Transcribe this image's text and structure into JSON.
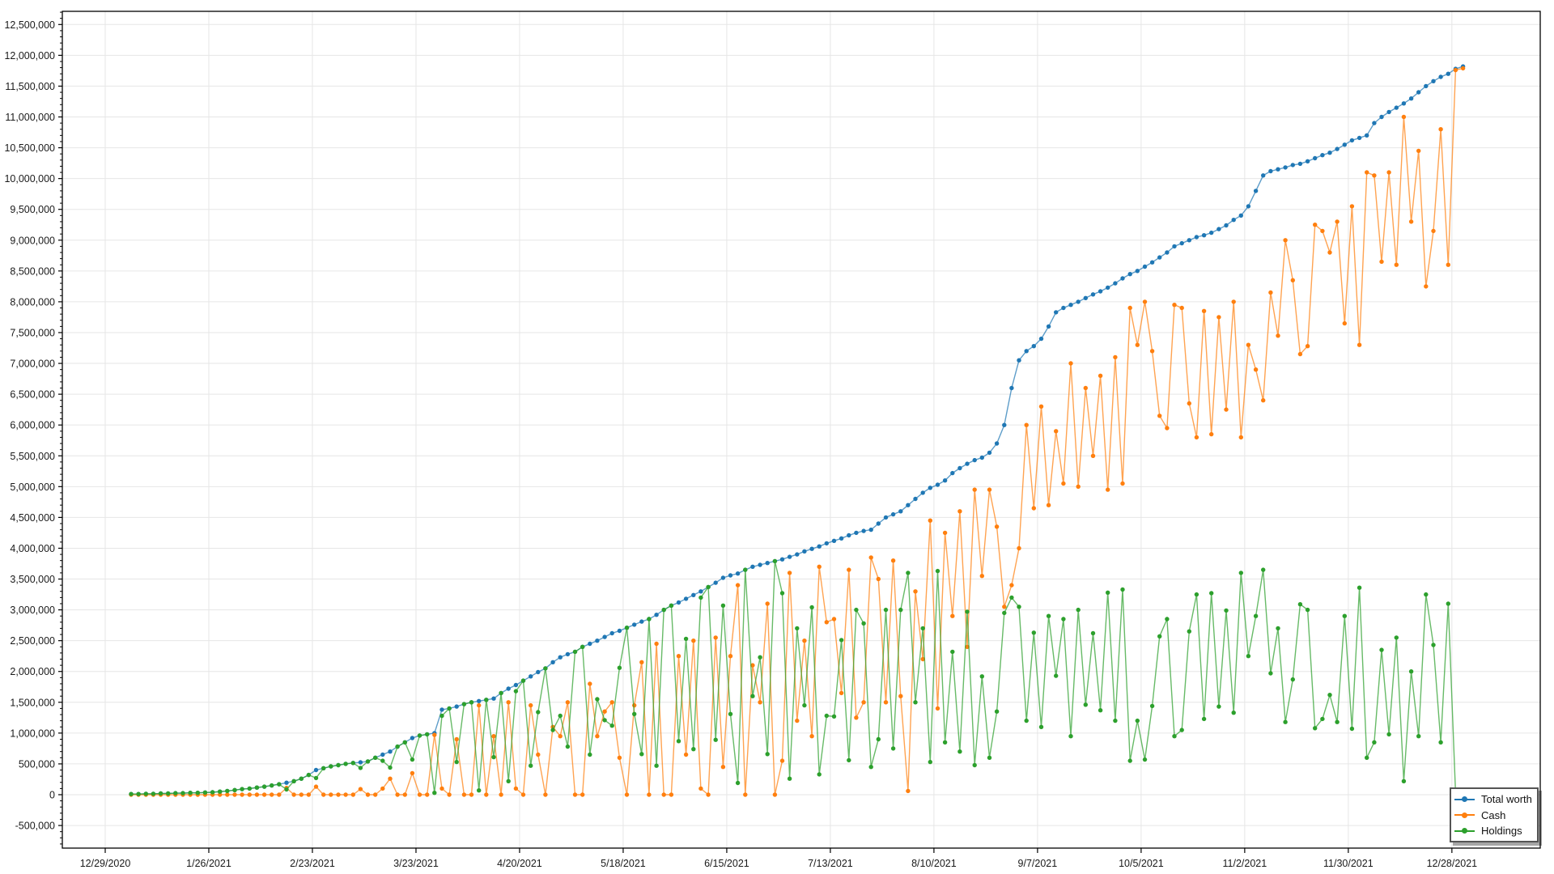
{
  "chart_data": {
    "type": "line",
    "title": "",
    "background_color": "#ffffff",
    "grid": true,
    "grid_color": "#e6e6e6",
    "axis_color": "#000000",
    "tick_label_color": "#1a1a1a",
    "legend": {
      "position": "bottom-right",
      "items": [
        "Total worth",
        "Cash",
        "Holdings"
      ]
    },
    "x_axis": {
      "label": "",
      "origin_tick_date": "12/29/2020",
      "tick_labels": [
        "12/29/2020",
        "1/26/2021",
        "2/23/2021",
        "3/23/2021",
        "4/20/2021",
        "5/18/2021",
        "6/15/2021",
        "7/13/2021",
        "8/10/2021",
        "9/7/2021",
        "10/5/2021",
        "11/2/2021",
        "11/30/2021",
        "12/28/2021"
      ],
      "tick_days": [
        0,
        28,
        56,
        84,
        112,
        140,
        168,
        196,
        224,
        252,
        280,
        308,
        336,
        364
      ]
    },
    "y_axis": {
      "label": "",
      "tick_values": [
        -500000,
        0,
        500000,
        1000000,
        1500000,
        2000000,
        2500000,
        3000000,
        3500000,
        4000000,
        4500000,
        5000000,
        5500000,
        6000000,
        6500000,
        7000000,
        7500000,
        8000000,
        8500000,
        9000000,
        9500000,
        10000000,
        10500000,
        11000000,
        11500000,
        12000000,
        12500000
      ],
      "minor_tick_step": 100000,
      "number_format": "en-US comma grouping"
    },
    "x_days": [
      7,
      9,
      11,
      13,
      15,
      17,
      19,
      21,
      23,
      25,
      27,
      29,
      31,
      33,
      35,
      37,
      39,
      41,
      43,
      45,
      47,
      49,
      51,
      53,
      55,
      57,
      59,
      61,
      63,
      65,
      67,
      69,
      71,
      73,
      75,
      77,
      79,
      81,
      83,
      85,
      87,
      89,
      91,
      93,
      95,
      97,
      99,
      101,
      103,
      105,
      107,
      109,
      111,
      113,
      115,
      117,
      119,
      121,
      123,
      125,
      127,
      129,
      131,
      133,
      135,
      137,
      139,
      141,
      143,
      145,
      147,
      149,
      151,
      153,
      155,
      157,
      159,
      161,
      163,
      165,
      167,
      169,
      171,
      173,
      175,
      177,
      179,
      181,
      183,
      185,
      187,
      189,
      191,
      193,
      195,
      197,
      199,
      201,
      203,
      205,
      207,
      209,
      211,
      213,
      215,
      217,
      219,
      221,
      223,
      225,
      227,
      229,
      231,
      233,
      235,
      237,
      239,
      241,
      243,
      245,
      247,
      249,
      251,
      253,
      255,
      257,
      259,
      261,
      263,
      265,
      267,
      269,
      271,
      273,
      275,
      277,
      279,
      281,
      283,
      285,
      287,
      289,
      291,
      293,
      295,
      297,
      299,
      301,
      303,
      305,
      307,
      309,
      311,
      313,
      315,
      317,
      319,
      321,
      323,
      325,
      327,
      329,
      331,
      333,
      335,
      337,
      339,
      341,
      343,
      345,
      347,
      349,
      351,
      353,
      355,
      357,
      359,
      361,
      363,
      365,
      367
    ],
    "series": [
      {
        "name": "Total worth",
        "color": "#1f77b4",
        "values": [
          10000,
          10000,
          15000,
          15000,
          20000,
          20000,
          25000,
          25000,
          30000,
          30000,
          35000,
          40000,
          50000,
          60000,
          75000,
          90000,
          100000,
          115000,
          130000,
          150000,
          170000,
          195000,
          220000,
          260000,
          320000,
          400000,
          430000,
          460000,
          480000,
          500000,
          515000,
          525000,
          540000,
          600000,
          650000,
          700000,
          780000,
          850000,
          920000,
          960000,
          980000,
          1000000,
          1380000,
          1400000,
          1430000,
          1470000,
          1500000,
          1520000,
          1540000,
          1560000,
          1650000,
          1720000,
          1780000,
          1850000,
          1920000,
          1990000,
          2050000,
          2150000,
          2230000,
          2280000,
          2320000,
          2400000,
          2450000,
          2500000,
          2560000,
          2620000,
          2660000,
          2710000,
          2760000,
          2810000,
          2850000,
          2920000,
          3000000,
          3070000,
          3120000,
          3180000,
          3240000,
          3300000,
          3370000,
          3440000,
          3520000,
          3560000,
          3590000,
          3650000,
          3700000,
          3730000,
          3760000,
          3790000,
          3820000,
          3860000,
          3900000,
          3950000,
          3990000,
          4030000,
          4080000,
          4120000,
          4160000,
          4210000,
          4250000,
          4280000,
          4300000,
          4400000,
          4500000,
          4550000,
          4600000,
          4700000,
          4800000,
          4900000,
          4980000,
          5030000,
          5100000,
          5220000,
          5300000,
          5370000,
          5430000,
          5470000,
          5550000,
          5700000,
          6000000,
          6600000,
          7050000,
          7200000,
          7280000,
          7400000,
          7600000,
          7830000,
          7900000,
          7950000,
          8000000,
          8060000,
          8120000,
          8170000,
          8230000,
          8300000,
          8380000,
          8450000,
          8500000,
          8570000,
          8640000,
          8720000,
          8800000,
          8900000,
          8950000,
          9000000,
          9050000,
          9080000,
          9120000,
          9180000,
          9240000,
          9330000,
          9400000,
          9550000,
          9800000,
          10050000,
          10120000,
          10150000,
          10180000,
          10220000,
          10240000,
          10280000,
          10330000,
          10380000,
          10420000,
          10480000,
          10550000,
          10620000,
          10660000,
          10700000,
          10900000,
          11000000,
          11080000,
          11150000,
          11220000,
          11300000,
          11400000,
          11500000,
          11580000,
          11650000,
          11700000,
          11780000,
          11820000
        ]
      },
      {
        "name": "Cash",
        "color": "#ff7f0e",
        "values": [
          0,
          0,
          0,
          0,
          0,
          0,
          0,
          0,
          0,
          0,
          0,
          0,
          0,
          0,
          0,
          0,
          0,
          0,
          0,
          0,
          0,
          110000,
          0,
          0,
          0,
          130000,
          0,
          0,
          0,
          0,
          0,
          90000,
          0,
          0,
          100000,
          260000,
          0,
          0,
          350000,
          0,
          0,
          970000,
          100000,
          0,
          900000,
          0,
          0,
          1450000,
          0,
          950000,
          0,
          1500000,
          100000,
          0,
          1450000,
          650000,
          0,
          1100000,
          950000,
          1500000,
          0,
          0,
          1800000,
          950000,
          1350000,
          1500000,
          600000,
          0,
          1450000,
          2150000,
          0,
          2450000,
          0,
          0,
          2250000,
          650000,
          2500000,
          100000,
          0,
          2550000,
          450000,
          2250000,
          3400000,
          0,
          2100000,
          1500000,
          3100000,
          0,
          550000,
          3600000,
          1200000,
          2500000,
          950000,
          3700000,
          2800000,
          2850000,
          1650000,
          3650000,
          1250000,
          1500000,
          3850000,
          3500000,
          1500000,
          3800000,
          1600000,
          60000,
          3300000,
          2200000,
          4450000,
          1400000,
          4250000,
          2900000,
          4600000,
          2400000,
          4950000,
          3550000,
          4950000,
          4350000,
          3050000,
          3400000,
          4000000,
          6000000,
          4650000,
          6300000,
          4700000,
          5900000,
          5050000,
          7000000,
          5000000,
          6600000,
          5500000,
          6800000,
          4950000,
          7100000,
          5050000,
          7900000,
          7300000,
          8000000,
          7200000,
          6150000,
          5950000,
          7950000,
          7900000,
          6350000,
          5800000,
          7850000,
          5850000,
          7750000,
          6250000,
          8000000,
          5800000,
          7300000,
          6900000,
          6400000,
          8150000,
          7450000,
          9000000,
          8350000,
          7150000,
          7280000,
          9250000,
          9150000,
          8800000,
          9300000,
          7650000,
          9550000,
          7300000,
          10100000,
          10050000,
          8650000,
          10100000,
          8600000,
          11000000,
          9300000,
          10450000,
          8250000,
          9150000,
          10800000,
          8600000,
          11760000,
          11790000
        ]
      },
      {
        "name": "Holdings",
        "color": "#2ca02c",
        "values": [
          10000,
          10000,
          15000,
          15000,
          20000,
          20000,
          25000,
          25000,
          30000,
          30000,
          35000,
          40000,
          50000,
          60000,
          75000,
          90000,
          100000,
          115000,
          130000,
          150000,
          170000,
          85000,
          220000,
          260000,
          320000,
          270000,
          430000,
          460000,
          480000,
          500000,
          515000,
          435000,
          540000,
          600000,
          550000,
          440000,
          780000,
          850000,
          570000,
          960000,
          980000,
          30000,
          1280000,
          1400000,
          530000,
          1470000,
          1500000,
          70000,
          1540000,
          610000,
          1650000,
          220000,
          1680000,
          1850000,
          470000,
          1340000,
          2050000,
          1050000,
          1280000,
          780000,
          2320000,
          2400000,
          650000,
          1550000,
          1210000,
          1120000,
          2060000,
          2710000,
          1310000,
          660000,
          2850000,
          470000,
          3000000,
          3070000,
          870000,
          2530000,
          740000,
          3200000,
          3370000,
          890000,
          3070000,
          1310000,
          190000,
          3650000,
          1600000,
          2230000,
          660000,
          3790000,
          3270000,
          260000,
          2700000,
          1450000,
          3040000,
          330000,
          1280000,
          1270000,
          2510000,
          560000,
          3000000,
          2780000,
          450000,
          900000,
          3000000,
          750000,
          3000000,
          3600000,
          1500000,
          2700000,
          530000,
          3630000,
          850000,
          2320000,
          700000,
          2970000,
          480000,
          1920000,
          600000,
          1350000,
          2950000,
          3200000,
          3050000,
          1200000,
          2630000,
          1100000,
          2900000,
          1930000,
          2850000,
          950000,
          3000000,
          1460000,
          2620000,
          1370000,
          3280000,
          1200000,
          3330000,
          550000,
          1200000,
          570000,
          1440000,
          2570000,
          2850000,
          950000,
          1050000,
          2650000,
          3250000,
          1230000,
          3270000,
          1430000,
          2990000,
          1330000,
          3600000,
          2250000,
          2900000,
          3650000,
          1970000,
          2700000,
          1180000,
          1870000,
          3090000,
          3000000,
          1080000,
          1230000,
          1620000,
          1180000,
          2900000,
          1070000,
          3360000,
          600000,
          850000,
          2350000,
          980000,
          2550000,
          220000,
          2000000,
          950000,
          3250000,
          2430000,
          850000,
          3100000,
          20000,
          30000
        ]
      }
    ]
  }
}
